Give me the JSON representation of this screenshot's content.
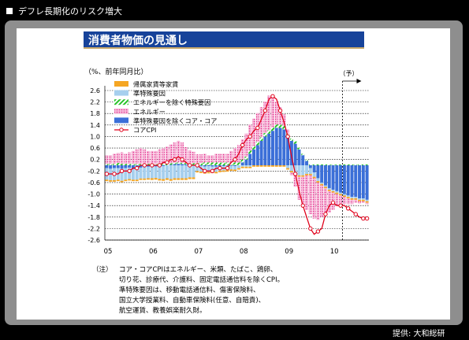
{
  "header": {
    "title": "デフレ長期化のリスク増大"
  },
  "panel": {
    "title": "消費者物価の見通し"
  },
  "credit": "提供: 大和総研",
  "notes": {
    "label": "（注）",
    "lines": [
      "コア・コアCPIはエネルギー、米類、たばこ、鶏卵、",
      "切り花、診療代、介護料、固定電話通信料を除くCPI。",
      "準特殊要因は、移動電話通信料、傷害保険料、",
      "国立大学授業料、自動車保険料(任意、自賠責)、",
      "航空運賃、教養娯楽耐久財。"
    ]
  },
  "chart_data": {
    "type": "bar",
    "unit_label": "（%、前年同月比）",
    "forecast_label": "（予）",
    "ylim": [
      -2.6,
      2.6
    ],
    "yticks": [
      "2.6",
      "2.2",
      "1.8",
      "1.4",
      "1.0",
      "0.6",
      "0.2",
      "-0.2",
      "-0.6",
      "-1.0",
      "-1.4",
      "-1.8",
      "-2.2",
      "-2.6"
    ],
    "xticks": [
      "05",
      "06",
      "07",
      "08",
      "09",
      "10"
    ],
    "start": "2005-01",
    "forecast_start_index": 63,
    "legend": [
      {
        "name": "帰属家賃等家賃",
        "color": "#f5a623",
        "pattern": "solid"
      },
      {
        "name": "準特殊要因",
        "color": "#a6cfee",
        "pattern": "solid"
      },
      {
        "name": "エネルギーを除く特殊要因",
        "color": "#27c227",
        "pattern": "hatch"
      },
      {
        "name": "エネルギー",
        "color": "#ee6fb0",
        "pattern": "dots"
      },
      {
        "name": "準特殊要因を除くコア・コア",
        "color": "#3b6fd8",
        "pattern": "solid"
      },
      {
        "name": "コアCPI",
        "color": "#e0001a",
        "pattern": "line"
      }
    ],
    "series": [
      {
        "name": "準特殊要因を除くコア・コア",
        "values": [
          -0.1,
          -0.12,
          -0.1,
          -0.1,
          -0.12,
          -0.1,
          -0.08,
          -0.12,
          -0.1,
          -0.08,
          -0.06,
          -0.05,
          -0.05,
          -0.04,
          -0.05,
          -0.03,
          0.0,
          0.02,
          0.04,
          0.05,
          0.04,
          0.03,
          0.02,
          0.02,
          0.0,
          -0.02,
          -0.04,
          -0.03,
          -0.04,
          -0.05,
          -0.04,
          -0.03,
          -0.02,
          -0.02,
          -0.03,
          0.0,
          0.1,
          0.2,
          0.4,
          0.55,
          0.7,
          0.85,
          1.0,
          1.1,
          1.2,
          1.3,
          1.3,
          1.25,
          1.0,
          0.85,
          0.75,
          0.55,
          0.35,
          0.15,
          -0.1,
          -0.25,
          -0.45,
          -0.6,
          -0.7,
          -0.8,
          -0.85,
          -0.9,
          -0.95,
          -1.0,
          -1.05,
          -1.1,
          -1.1,
          -1.15,
          -1.15,
          -1.2
        ]
      },
      {
        "name": "準特殊要因",
        "values": [
          -0.4,
          -0.4,
          -0.42,
          -0.4,
          -0.42,
          -0.4,
          -0.4,
          -0.38,
          -0.4,
          -0.38,
          -0.4,
          -0.4,
          -0.4,
          -0.4,
          -0.42,
          -0.45,
          -0.45,
          -0.48,
          -0.45,
          -0.45,
          -0.45,
          -0.45,
          -0.42,
          -0.42,
          -0.2,
          -0.2,
          -0.2,
          -0.2,
          -0.18,
          -0.18,
          -0.15,
          -0.15,
          -0.15,
          -0.12,
          -0.12,
          -0.1,
          -0.05,
          -0.05,
          -0.05,
          0.0,
          0.0,
          0.0,
          0.0,
          0.0,
          0.0,
          0.0,
          0.0,
          0.0,
          -0.1,
          -0.2,
          -0.3,
          -0.35,
          -0.35,
          -0.3,
          -0.2,
          -0.15,
          -0.1,
          -0.05,
          -0.05,
          -0.05,
          -0.05,
          -0.05,
          -0.05,
          -0.05,
          -0.05,
          -0.05,
          -0.05,
          -0.05,
          -0.05,
          -0.05
        ]
      },
      {
        "name": "帰属家賃等家賃",
        "values": [
          -0.05,
          -0.05,
          -0.05,
          -0.05,
          -0.05,
          -0.05,
          -0.05,
          -0.05,
          -0.05,
          -0.05,
          -0.05,
          -0.05,
          -0.06,
          -0.06,
          -0.06,
          -0.06,
          -0.06,
          -0.06,
          -0.06,
          -0.06,
          -0.06,
          -0.06,
          -0.06,
          -0.06,
          -0.05,
          -0.05,
          -0.05,
          -0.05,
          -0.05,
          -0.05,
          -0.05,
          -0.05,
          -0.05,
          -0.05,
          -0.05,
          -0.05,
          -0.05,
          -0.05,
          -0.05,
          -0.05,
          -0.05,
          -0.05,
          -0.05,
          -0.05,
          -0.05,
          -0.05,
          -0.05,
          -0.05,
          -0.05,
          -0.05,
          -0.05,
          -0.05,
          -0.05,
          -0.05,
          -0.05,
          -0.05,
          -0.05,
          -0.05,
          -0.05,
          -0.05,
          -0.05,
          -0.05,
          -0.05,
          -0.05,
          -0.05,
          -0.05,
          -0.05,
          -0.05,
          -0.05,
          -0.05
        ]
      },
      {
        "name": "エネルギーを除く特殊要因",
        "values": [
          0.05,
          0.05,
          0.05,
          0.08,
          0.05,
          0.05,
          0.05,
          0.05,
          0.05,
          0.05,
          0.05,
          0.05,
          0.05,
          0.05,
          0.05,
          0.05,
          0.05,
          0.05,
          0.05,
          0.05,
          0.05,
          0.05,
          0.05,
          0.05,
          0.08,
          0.08,
          0.1,
          0.1,
          0.1,
          0.1,
          0.1,
          0.1,
          0.1,
          0.1,
          0.1,
          0.1,
          0.1,
          0.1,
          0.12,
          0.12,
          0.12,
          0.12,
          0.12,
          0.12,
          0.12,
          0.12,
          0.12,
          0.12,
          0.1,
          0.08,
          0.08,
          0.06,
          0.05,
          0.05,
          0.03,
          0.03,
          0.03,
          0.03,
          0.03,
          0.03,
          0.03,
          0.03,
          0.03,
          0.03,
          0.03,
          0.03,
          0.03,
          0.03,
          0.03,
          0.03
        ]
      },
      {
        "name": "エネルギー",
        "values": [
          0.3,
          0.3,
          0.35,
          0.35,
          0.4,
          0.35,
          0.4,
          0.45,
          0.5,
          0.55,
          0.5,
          0.45,
          0.45,
          0.45,
          0.5,
          0.55,
          0.6,
          0.65,
          0.7,
          0.75,
          0.7,
          0.55,
          0.45,
          0.4,
          0.3,
          0.3,
          0.3,
          0.25,
          0.25,
          0.3,
          0.3,
          0.3,
          0.3,
          0.4,
          0.5,
          0.6,
          0.7,
          0.8,
          0.9,
          0.95,
          1.0,
          1.05,
          1.1,
          1.2,
          1.1,
          0.8,
          0.6,
          0.4,
          0.15,
          -0.1,
          -0.4,
          -0.8,
          -1.05,
          -1.2,
          -1.35,
          -1.4,
          -1.3,
          -1.1,
          -0.9,
          -0.75,
          -0.6,
          -0.4,
          -0.3,
          -0.25,
          -0.2,
          -0.15,
          -0.1,
          -0.08,
          -0.05,
          -0.05
        ]
      },
      {
        "name": "コアCPI",
        "values": [
          -0.3,
          -0.3,
          -0.3,
          -0.3,
          -0.2,
          -0.2,
          -0.2,
          -0.1,
          -0.1,
          0.0,
          0.0,
          0.0,
          0.0,
          0.0,
          0.0,
          0.1,
          0.1,
          0.2,
          0.2,
          0.3,
          0.2,
          0.1,
          0.0,
          0.0,
          0.0,
          -0.1,
          -0.2,
          -0.2,
          -0.2,
          -0.1,
          -0.1,
          -0.1,
          -0.1,
          0.1,
          0.2,
          0.4,
          0.7,
          0.9,
          1.0,
          1.2,
          1.3,
          1.6,
          1.9,
          2.3,
          2.4,
          2.3,
          1.9,
          1.5,
          1.0,
          0.3,
          -0.3,
          -0.9,
          -1.4,
          -1.8,
          -2.2,
          -2.4,
          -2.3,
          -2.2,
          -1.7,
          -1.4,
          -1.3,
          -1.4,
          -1.4,
          -1.4,
          -1.5,
          -1.6,
          -1.7,
          -1.8,
          -1.85,
          -1.85
        ]
      }
    ]
  }
}
